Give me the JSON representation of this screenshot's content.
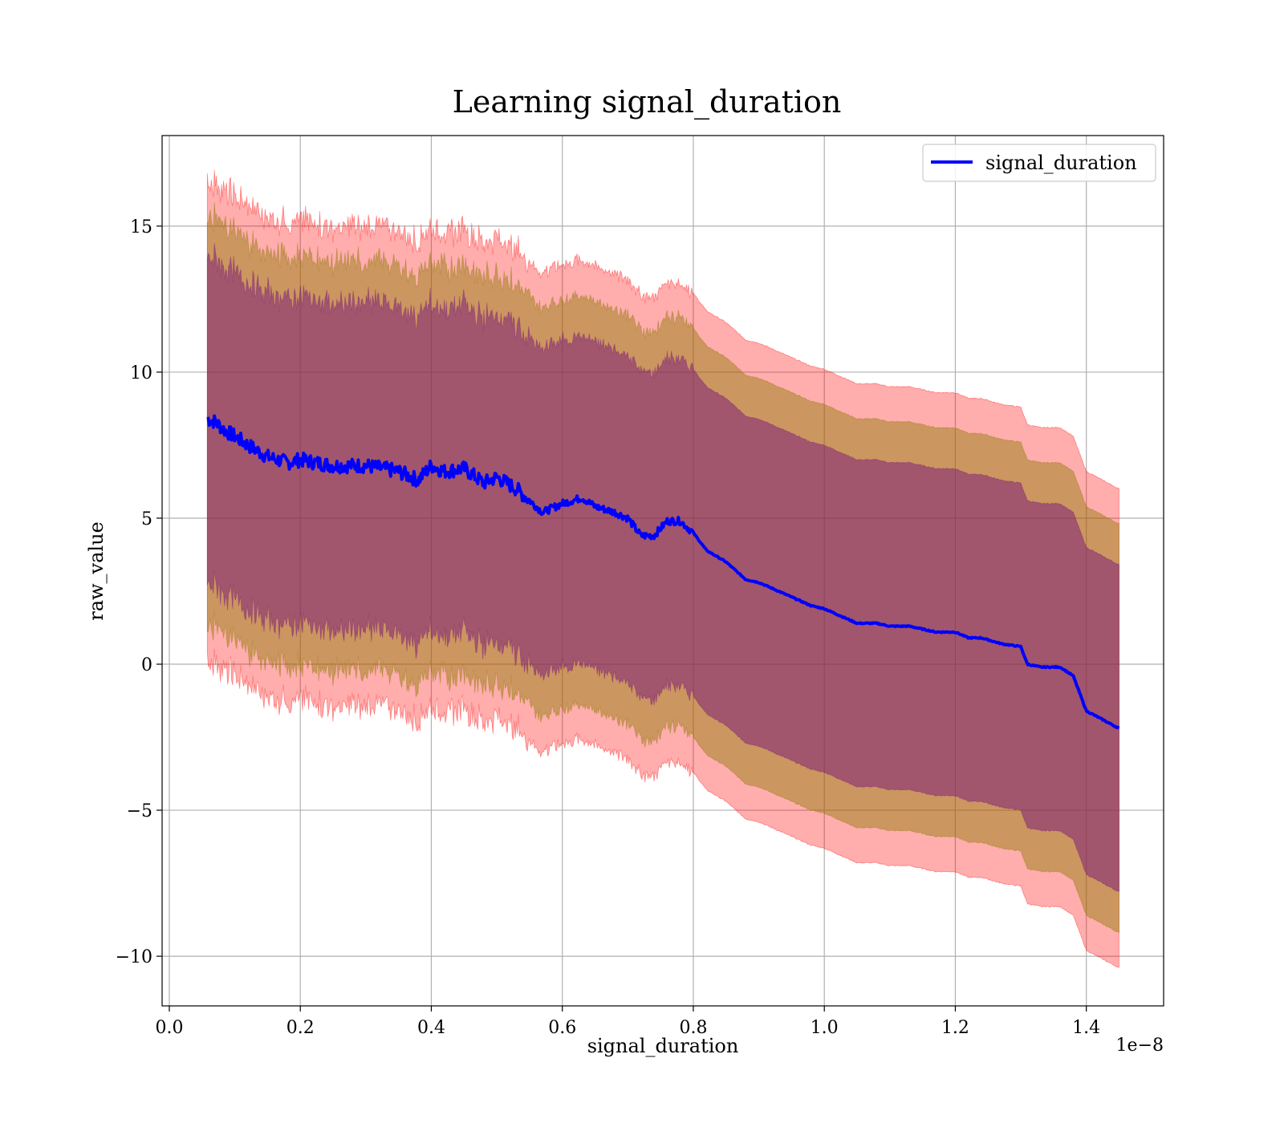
{
  "chart_data": {
    "type": "line",
    "title": "Learning signal_duration",
    "xlabel": "signal_duration",
    "ylabel": "raw_value",
    "x_offset_label": "1e−8",
    "xlim": [
      -0.011,
      1.518
    ],
    "ylim": [
      -11.7,
      18.1
    ],
    "x_ticks": [
      0.0,
      0.2,
      0.4,
      0.6,
      0.8,
      1.0,
      1.2,
      1.4
    ],
    "x_tick_labels": [
      "0.0",
      "0.2",
      "0.4",
      "0.6",
      "0.8",
      "1.0",
      "1.2",
      "1.4"
    ],
    "y_ticks": [
      -10,
      -5,
      0,
      5,
      10,
      15
    ],
    "y_tick_labels": [
      "−10",
      "−5",
      "0",
      "5",
      "10",
      "15"
    ],
    "grid": true,
    "legend": {
      "position": "top-right",
      "entries": [
        "signal_duration"
      ]
    },
    "colors": {
      "line": "#0000ff",
      "band_outer": "#ff0000",
      "band_middle": "#8b7a00",
      "band_inner": "#7a1a7a"
    },
    "series": [
      {
        "name": "signal_duration",
        "x": [
          0.058,
          0.07,
          0.085,
          0.1,
          0.12,
          0.15,
          0.18,
          0.2,
          0.25,
          0.3,
          0.35,
          0.38,
          0.4,
          0.42,
          0.45,
          0.48,
          0.5,
          0.53,
          0.55,
          0.57,
          0.6,
          0.63,
          0.65,
          0.68,
          0.7,
          0.72,
          0.74,
          0.76,
          0.78,
          0.8,
          0.82,
          0.85,
          0.88,
          0.9,
          0.92,
          0.95,
          0.98,
          1.0,
          1.02,
          1.05,
          1.08,
          1.1,
          1.13,
          1.15,
          1.17,
          1.2,
          1.22,
          1.24,
          1.27,
          1.3,
          1.31,
          1.33,
          1.36,
          1.38,
          1.4,
          1.45
        ],
        "y": [
          8.4,
          8.3,
          8.0,
          7.8,
          7.5,
          7.1,
          6.9,
          7.0,
          6.8,
          6.8,
          6.6,
          6.3,
          6.8,
          6.6,
          6.7,
          6.2,
          6.4,
          6.0,
          5.6,
          5.2,
          5.5,
          5.7,
          5.4,
          5.2,
          5.0,
          4.4,
          4.4,
          4.9,
          4.9,
          4.5,
          3.9,
          3.5,
          2.9,
          2.8,
          2.6,
          2.3,
          2.0,
          1.9,
          1.7,
          1.4,
          1.4,
          1.3,
          1.3,
          1.2,
          1.1,
          1.1,
          0.9,
          0.9,
          0.7,
          0.6,
          0.0,
          -0.1,
          -0.1,
          -0.4,
          -1.6,
          -2.2
        ],
        "band_halfwidths": {
          "inner": 5.6,
          "middle": 7.0,
          "outer": 8.2
        }
      }
    ]
  }
}
